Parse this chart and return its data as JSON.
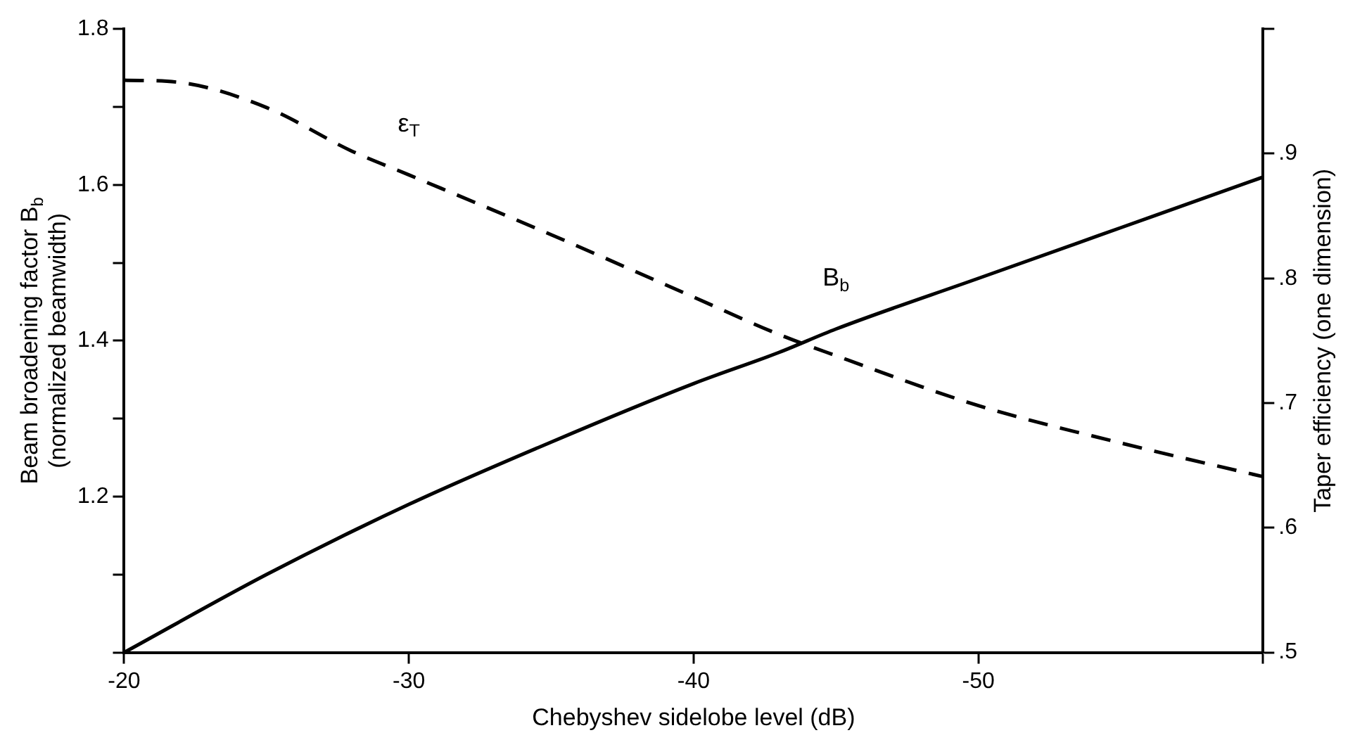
{
  "chart_data": {
    "type": "line",
    "xlabel": "Chebyshev sidelobe level (dB)",
    "ylabel": "Beam broadening factor B$_{b}$\n(normalized beamwidth)",
    "y2label": "Taper efficiency (one dimension)",
    "x": [
      -20,
      -25,
      -30,
      -35,
      -40,
      -43,
      -45,
      -50,
      -55,
      -60
    ],
    "series": [
      {
        "name": "B$_{b}$",
        "color": "#000000",
        "line_style": "solid",
        "values": [
          1.0,
          1.1,
          1.19,
          1.27,
          1.345,
          1.385,
          1.415,
          1.48,
          1.545,
          1.61
        ]
      },
      {
        "name": "ε$_{T}$",
        "color": "#000000",
        "line_style": "dashed",
        "axis": "y2",
        "x": [
          -20,
          -22,
          -25,
          -28,
          -30,
          -35,
          -40,
          -43,
          -45,
          -50,
          -55,
          -60
        ],
        "values": [
          0.959,
          0.957,
          0.937,
          0.902,
          0.883,
          0.835,
          0.785,
          0.755,
          0.738,
          0.698,
          0.668,
          0.641
        ]
      }
    ],
    "xlim": [
      -20,
      -60
    ],
    "xticks": [
      -20,
      -30,
      -40,
      -50,
      {
        "value": -60,
        "label": null
      }
    ],
    "ylim": [
      1.0,
      1.8
    ],
    "yticks": [
      {
        "value": 1.0,
        "label": null
      },
      {
        "value": 1.1,
        "label": null
      },
      1.2,
      {
        "value": 1.3,
        "label": null
      },
      1.4,
      {
        "value": 1.5,
        "label": null
      },
      1.6,
      {
        "value": 1.7,
        "label": null
      },
      1.8
    ],
    "y2lim": [
      0.5,
      1.0
    ],
    "y2ticks": [
      {
        "value": 0.5,
        "label": ".5"
      },
      {
        "value": 0.6,
        "label": ".6"
      },
      {
        "value": 0.7,
        "label": ".7"
      },
      {
        "value": 0.8,
        "label": ".8"
      },
      {
        "value": 0.9,
        "label": ".9"
      },
      {
        "value": 1.0,
        "label": null
      }
    ],
    "grid": false,
    "legend": false,
    "marker": "none"
  }
}
